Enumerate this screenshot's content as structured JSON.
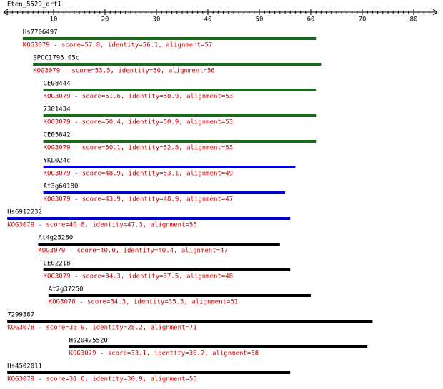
{
  "ruler": {
    "title": "Eten_5529_orf1",
    "xlim": [
      0,
      84
    ],
    "ticks": [
      10,
      20,
      30,
      40,
      50,
      60,
      70,
      80
    ]
  },
  "hits": [
    {
      "name": "Hs7706497",
      "description": "KOG3079 - score=57.8, identity=56.1, alignment=57",
      "start": 4,
      "end": 61,
      "color": "#1a6b1a"
    },
    {
      "name": "SPCC1795.05c",
      "description": "KOG3079 - score=53.5, identity=50, alignment=56",
      "start": 6,
      "end": 62,
      "color": "#1a6b1a"
    },
    {
      "name": "CE08444",
      "description": "KOG3079 - score=51.6, identity=50.9, alignment=53",
      "start": 8,
      "end": 61,
      "color": "#1a6b1a"
    },
    {
      "name": "7301434",
      "description": "KOG3079 - score=50.4, identity=50.9, alignment=53",
      "start": 8,
      "end": 61,
      "color": "#1a6b1a"
    },
    {
      "name": "CE05842",
      "description": "KOG3079 - score=50.1, identity=52.8, alignment=53",
      "start": 8,
      "end": 61,
      "color": "#1a6b1a"
    },
    {
      "name": "YKL024c",
      "description": "KOG3079 - score=48.9, identity=53.1, alignment=49",
      "start": 8,
      "end": 57,
      "color": "#0000cc"
    },
    {
      "name": "At3g60180",
      "description": "KOG3079 - score=43.9, identity=48.9, alignment=47",
      "start": 8,
      "end": 55,
      "color": "#0000cc"
    },
    {
      "name": "Hs6912232",
      "description": "KOG3079 - score=40.8, identity=47.3, alignment=55",
      "start": 1,
      "end": 56,
      "color": "#0000cc"
    },
    {
      "name": "At4g25280",
      "description": "KOG3079 - score=40.0, identity=40.4, alignment=47",
      "start": 7,
      "end": 54,
      "color": "#000000"
    },
    {
      "name": "CE02218",
      "description": "KOG3079 - score=34.3, identity=37.5, alignment=48",
      "start": 8,
      "end": 56,
      "color": "#000000"
    },
    {
      "name": "At2g37250",
      "description": "KOG3078 - score=34.3, identity=35.3, alignment=51",
      "start": 9,
      "end": 60,
      "color": "#000000"
    },
    {
      "name": "7299387",
      "description": "KOG3078 - score=33.9, identity=28.2, alignment=71",
      "start": 1,
      "end": 72,
      "color": "#000000"
    },
    {
      "name": "Hs20475520",
      "description": "KOG3079 - score=33.1, identity=36.2, alignment=58",
      "start": 13,
      "end": 71,
      "color": "#000000"
    },
    {
      "name": "Hs4502011",
      "description": "KOG3079 - score=31.6, identity=30.9, alignment=55",
      "start": 1,
      "end": 56,
      "color": "#000000"
    }
  ]
}
